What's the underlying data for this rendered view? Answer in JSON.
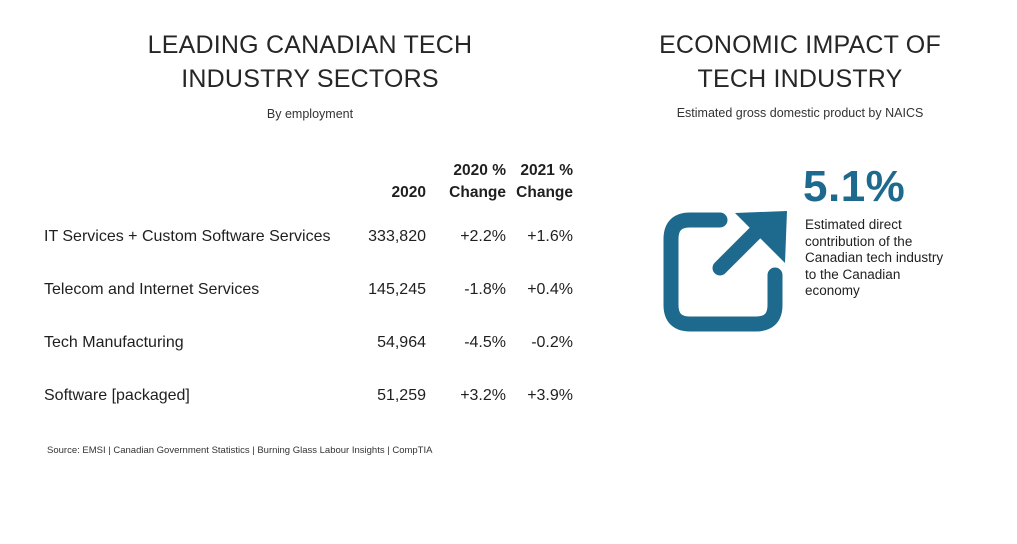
{
  "left": {
    "title_line1": "LEADING CANADIAN TECH",
    "title_line2": "INDUSTRY SECTORS",
    "subtitle": "By employment",
    "headers": {
      "year": "2020",
      "change2020_line1": "2020 %",
      "change2020_line2": "Change",
      "change2021_line1": "2021 %",
      "change2021_line2": "Change"
    },
    "rows": [
      {
        "sector": "IT Services + Custom Software Services",
        "employment": "333,820",
        "change2020": "+2.2%",
        "change2021": "+1.6%"
      },
      {
        "sector": "Telecom and Internet Services",
        "employment": "145,245",
        "change2020": "-1.8%",
        "change2021": "+0.4%"
      },
      {
        "sector": "Tech Manufacturing",
        "employment": "54,964",
        "change2020": "-4.5%",
        "change2021": "-0.2%"
      },
      {
        "sector": "Software [packaged]",
        "employment": "51,259",
        "change2020": "+3.2%",
        "change2021": "+3.9%"
      }
    ],
    "source": "Source: EMSI | Canadian Government Statistics | Burning Glass Labour Insights | CompTIA"
  },
  "right": {
    "title_line1": "ECONOMIC IMPACT OF",
    "title_line2": "TECH INDUSTRY",
    "subtitle": "Estimated gross domestic product by NAICS",
    "stat_value": "5.1%",
    "stat_description": "Estimated direct contribution of the Canadian tech industry to the Canadian economy",
    "icon": "external-arrow-icon",
    "accent_color": "#1d6a8e"
  }
}
